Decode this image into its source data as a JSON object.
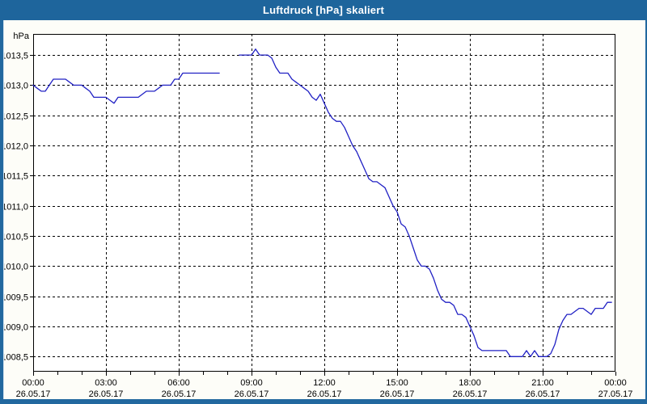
{
  "window": {
    "title": "Luftdruck [hPa] skaliert"
  },
  "chart_data": {
    "type": "line",
    "title": "Luftdruck [hPa] skaliert",
    "ylabel": "hPa",
    "xlabel": "",
    "grid": "dashed",
    "legend": "none",
    "ylim": [
      1008.25,
      1013.85
    ],
    "xlim_hours": [
      0,
      24
    ],
    "y_ticks": [
      1013.5,
      1013.0,
      1012.5,
      1012.0,
      1011.5,
      1011.0,
      1010.5,
      1010.0,
      1009.5,
      1009.0,
      1008.5
    ],
    "y_tick_labels": [
      "1013,5",
      "1013,0",
      "1012,5",
      "1012,0",
      "1011,5",
      "1011,0",
      "1010,5",
      "1010,0",
      "1009,5",
      "1009,0",
      "1008,5"
    ],
    "x_ticks": [
      {
        "hour": 0,
        "time": "00:00",
        "date": "26.05.17"
      },
      {
        "hour": 3,
        "time": "03:00",
        "date": "26.05.17"
      },
      {
        "hour": 6,
        "time": "06:00",
        "date": "26.05.17"
      },
      {
        "hour": 9,
        "time": "09:00",
        "date": "26.05.17"
      },
      {
        "hour": 12,
        "time": "12:00",
        "date": "26.05.17"
      },
      {
        "hour": 15,
        "time": "15:00",
        "date": "26.05.17"
      },
      {
        "hour": 18,
        "time": "18:00",
        "date": "26.05.17"
      },
      {
        "hour": 21,
        "time": "21:00",
        "date": "26.05.17"
      },
      {
        "hour": 24,
        "time": "00:00",
        "date": "27.05.17"
      }
    ],
    "series": [
      {
        "name": "Luftdruck",
        "color": "#2121c4",
        "step_minutes": 10,
        "gap_note": "data gap between 07:50 and 08:20",
        "values": [
          1013.0,
          1012.95,
          1012.9,
          1012.9,
          1013.0,
          1013.1,
          1013.1,
          1013.1,
          1013.1,
          1013.05,
          1013.0,
          1013.0,
          1013.0,
          1012.95,
          1012.9,
          1012.8,
          1012.8,
          1012.8,
          1012.8,
          1012.75,
          1012.7,
          1012.8,
          1012.8,
          1012.8,
          1012.8,
          1012.8,
          1012.8,
          1012.85,
          1012.9,
          1012.9,
          1012.9,
          1012.95,
          1013.0,
          1013.0,
          1013.0,
          1013.1,
          1013.1,
          1013.2,
          1013.2,
          1013.2,
          1013.2,
          1013.2,
          1013.2,
          1013.2,
          1013.2,
          1013.2,
          1013.2,
          null,
          null,
          null,
          null,
          1013.5,
          1013.5,
          1013.5,
          1013.5,
          1013.6,
          1013.5,
          1013.5,
          1013.5,
          1013.45,
          1013.3,
          1013.2,
          1013.2,
          1013.2,
          1013.1,
          1013.05,
          1013.0,
          1012.95,
          1012.9,
          1012.8,
          1012.75,
          1012.85,
          1012.7,
          1012.55,
          1012.45,
          1012.4,
          1012.4,
          1012.3,
          1012.15,
          1012.0,
          1011.9,
          1011.75,
          1011.6,
          1011.45,
          1011.4,
          1011.4,
          1011.35,
          1011.3,
          1011.15,
          1011.0,
          1010.9,
          1010.7,
          1010.65,
          1010.5,
          1010.3,
          1010.1,
          1010.0,
          1010.0,
          1009.95,
          1009.8,
          1009.6,
          1009.45,
          1009.4,
          1009.4,
          1009.35,
          1009.2,
          1009.2,
          1009.15,
          1009.0,
          1008.85,
          1008.65,
          1008.6,
          1008.6,
          1008.6,
          1008.6,
          1008.6,
          1008.6,
          1008.6,
          1008.5,
          1008.5,
          1008.5,
          1008.5,
          1008.6,
          1008.5,
          1008.6,
          1008.5,
          1008.5,
          1008.5,
          1008.55,
          1008.7,
          1008.95,
          1009.1,
          1009.2,
          1009.2,
          1009.25,
          1009.3,
          1009.3,
          1009.25,
          1009.2,
          1009.3,
          1009.3,
          1009.3,
          1009.4,
          1009.4,
          null
        ]
      }
    ],
    "colors": {
      "plot_background": "#ffffff",
      "grid": "#000000",
      "axis": "#000000",
      "frame": "#22689f",
      "titlebar": "#1e659c"
    }
  }
}
